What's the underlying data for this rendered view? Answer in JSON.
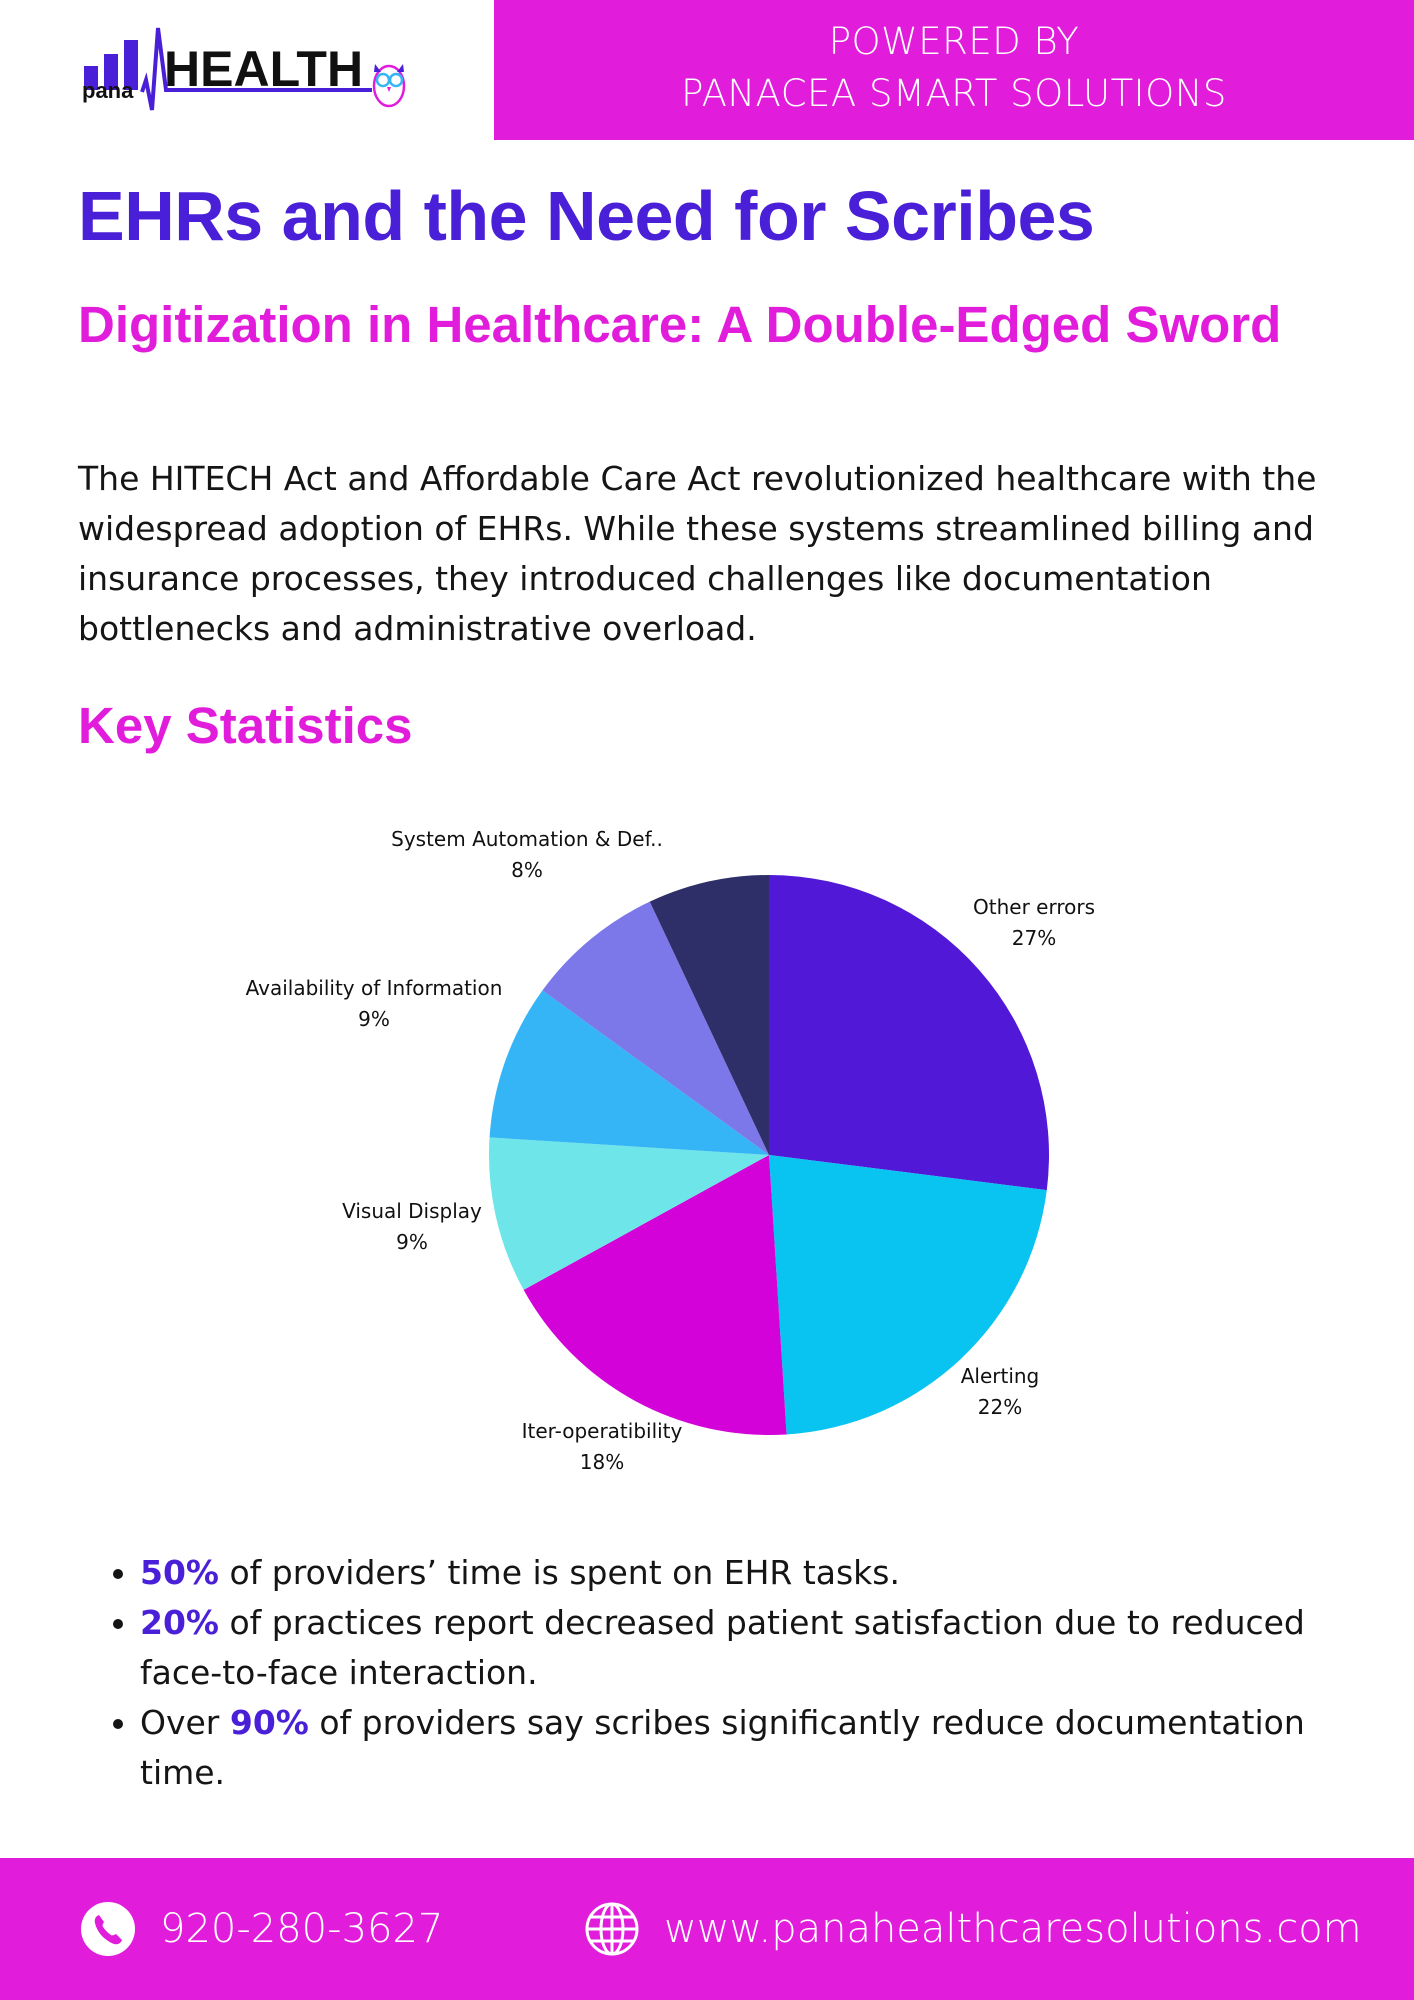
{
  "brand": {
    "logo_prefix": "pana",
    "logo_main": "HEALTH",
    "powered_line1": "POWERED BY",
    "powered_line2": "PANACEA SMART SOLUTIONS",
    "colors": {
      "magenta": "#e11ddb",
      "violet": "#4a1fd8"
    }
  },
  "header": {
    "title": "EHRs and the Need for Scribes",
    "subtitle": "Digitization in Healthcare: A Double-Edged Sword"
  },
  "intro": "The HITECH Act and Affordable Care Act revolutionized healthcare with the widespread adoption of EHRs. While these systems streamlined billing and insurance processes, they introduced challenges like documentation bottlenecks and administrative overload.",
  "stats_heading": "Key Statistics",
  "chart_data": {
    "type": "pie",
    "title": "",
    "unit": "%",
    "slices": [
      {
        "label": "Other errors",
        "value": 27,
        "display": "27%",
        "color": "#5118d8"
      },
      {
        "label": "Alerting",
        "value": 22,
        "display": "22%",
        "color": "#09c3f0"
      },
      {
        "label": "Iter-operatibility",
        "value": 18,
        "display": "18%",
        "color": "#d302d8"
      },
      {
        "label": "Visual Display",
        "value": 9,
        "display": "9%",
        "color": "#6ee5e9"
      },
      {
        "label": "Availability of Information",
        "value": 9,
        "display": "9%",
        "color": "#35b5f5"
      },
      {
        "label": "System Automation & Def..",
        "value": 8,
        "display": "8%",
        "color": "#7c78ea"
      },
      {
        "label": "",
        "value": 7,
        "display": "",
        "color": "#2e2f68"
      }
    ]
  },
  "bullets": [
    {
      "pre": "",
      "highlight": "50%",
      "post": " of providers’ time is spent on EHR tasks."
    },
    {
      "pre": "",
      "highlight": "20%",
      "post": " of practices report decreased patient satisfaction due to reduced face-to-face interaction."
    },
    {
      "pre": "Over ",
      "highlight": "90%",
      "post": " of providers say scribes significantly reduce documentation time."
    }
  ],
  "footer": {
    "phone": "920-280-3627",
    "website": "www.panahealthcaresolutions.com",
    "phone_icon": "phone-icon",
    "web_icon": "globe-icon"
  }
}
